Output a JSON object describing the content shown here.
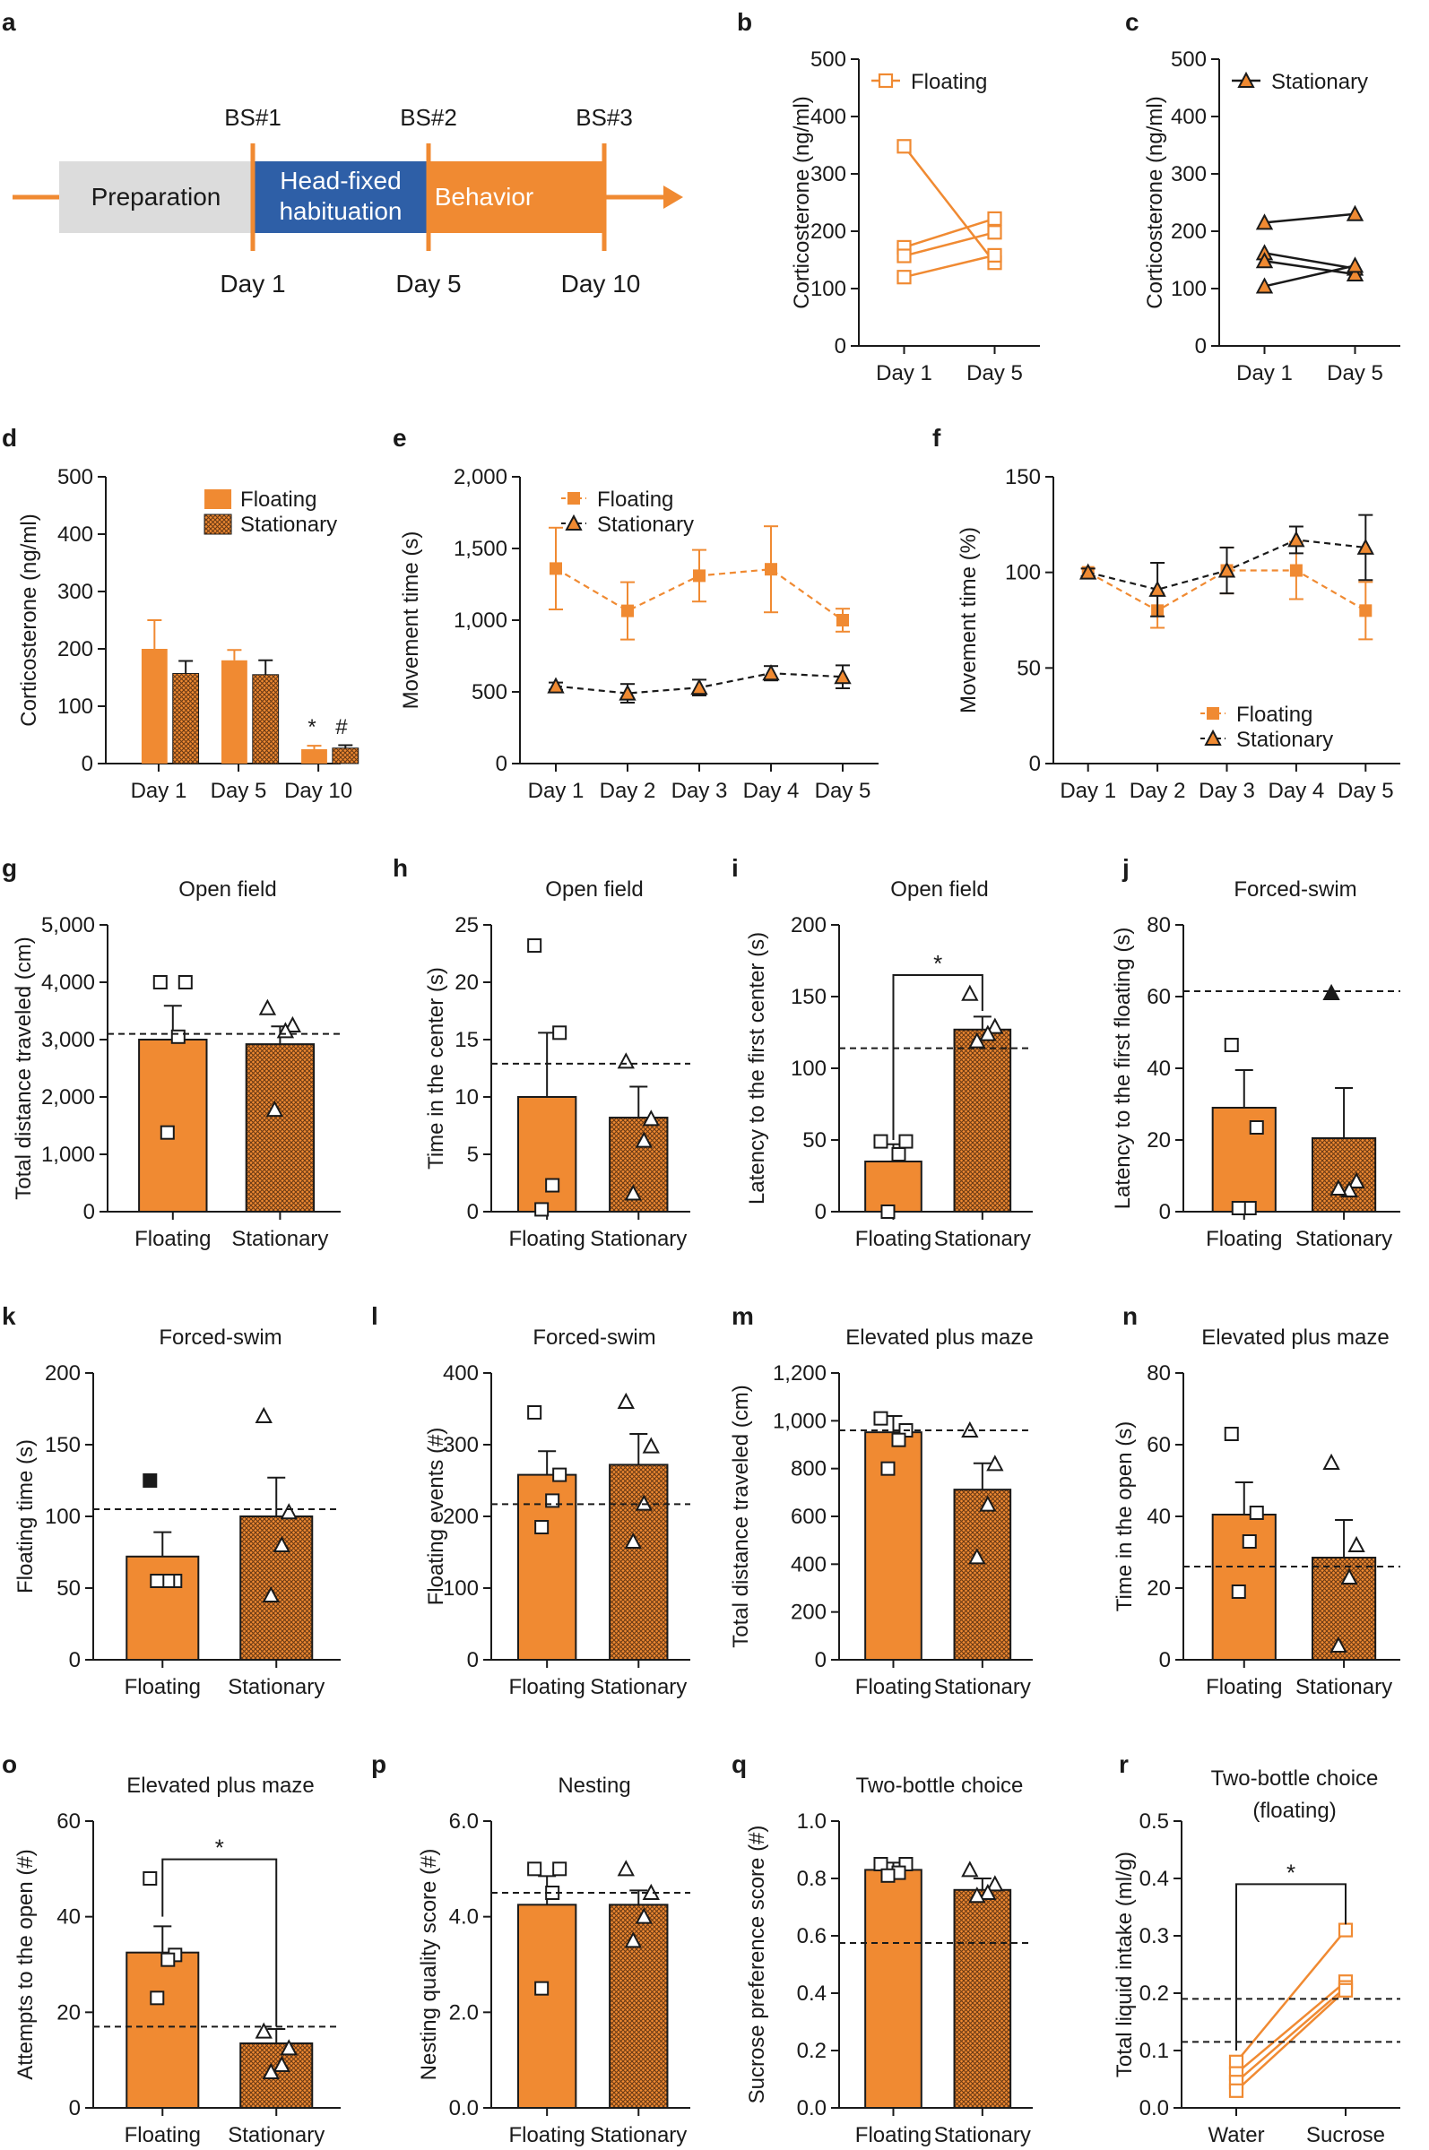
{
  "colors": {
    "orange": "#f08a32",
    "darkOrange": "#d8701f",
    "gray": "#dcdcdc",
    "blue": "#2e5fa7",
    "black": "#1a1a1a",
    "hatch": "#6a3a14"
  },
  "panel_a": {
    "letter": "a",
    "stages": [
      "Preparation",
      "Head-fixed",
      "habituation",
      "Behavior"
    ],
    "bs": [
      "BS#1",
      "BS#2",
      "BS#3"
    ],
    "days": [
      "Day 1",
      "Day 5",
      "Day 10"
    ]
  },
  "chart_data": [
    {
      "id": "b",
      "letter": "b",
      "type": "line",
      "title": "",
      "ylabel": "Corticosterone (ng/ml)",
      "ylim": [
        0,
        500
      ],
      "yticks": [
        0,
        100,
        200,
        300,
        400,
        500
      ],
      "ytick_labels": [
        "0",
        "100",
        "200",
        "300",
        "400",
        "500"
      ],
      "categories": [
        "Day 1",
        "Day 5"
      ],
      "legend": [
        "Floating"
      ],
      "marker": "square-open",
      "series": [
        {
          "name": "Floating",
          "values": [
            348,
            145
          ]
        },
        {
          "name": "Floating",
          "values": [
            172,
            222
          ]
        },
        {
          "name": "Floating",
          "values": [
            157,
            198
          ]
        },
        {
          "name": "Floating",
          "values": [
            120,
            158
          ]
        }
      ]
    },
    {
      "id": "c",
      "letter": "c",
      "type": "line",
      "title": "",
      "ylabel": "Corticosterone (ng/ml)",
      "ylim": [
        0,
        500
      ],
      "yticks": [
        0,
        100,
        200,
        300,
        400,
        500
      ],
      "ytick_labels": [
        "0",
        "100",
        "200",
        "300",
        "400",
        "500"
      ],
      "categories": [
        "Day 1",
        "Day 5"
      ],
      "legend": [
        "Stationary"
      ],
      "marker": "triangle-filled",
      "series": [
        {
          "name": "Stationary",
          "values": [
            215,
            230
          ]
        },
        {
          "name": "Stationary",
          "values": [
            162,
            135
          ]
        },
        {
          "name": "Stationary",
          "values": [
            148,
            125
          ]
        },
        {
          "name": "Stationary",
          "values": [
            104,
            140
          ]
        }
      ]
    },
    {
      "id": "d",
      "letter": "d",
      "type": "bar",
      "title": "",
      "ylabel": "Corticosterone (ng/ml)",
      "ylim": [
        0,
        500
      ],
      "yticks": [
        0,
        100,
        200,
        300,
        400,
        500
      ],
      "ytick_labels": [
        "0",
        "100",
        "200",
        "300",
        "400",
        "500"
      ],
      "categories": [
        "Day 1",
        "Day 5",
        "Day 10"
      ],
      "legend": [
        "Floating",
        "Stationary"
      ],
      "series": [
        {
          "name": "Floating",
          "values": [
            200,
            180,
            25
          ],
          "errors": [
            50,
            18,
            6
          ]
        },
        {
          "name": "Stationary",
          "values": [
            157,
            155,
            27
          ],
          "errors": [
            22,
            25,
            5
          ]
        }
      ],
      "annotations": [
        "*",
        "#"
      ]
    },
    {
      "id": "e",
      "letter": "e",
      "type": "line",
      "title": "",
      "ylabel": "Movement time (s)",
      "ylim": [
        0,
        2000
      ],
      "yticks": [
        0,
        500,
        1000,
        1500,
        2000
      ],
      "ytick_labels": [
        "0",
        "500",
        "1,000",
        "1,500",
        "2,000"
      ],
      "categories": [
        "Day 1",
        "Day 2",
        "Day 3",
        "Day 4",
        "Day 5"
      ],
      "legend": [
        "Floating",
        "Stationary"
      ],
      "series": [
        {
          "name": "Floating",
          "values": [
            1360,
            1065,
            1310,
            1355,
            1000
          ],
          "errors": [
            285,
            200,
            180,
            300,
            80
          ]
        },
        {
          "name": "Stationary",
          "values": [
            540,
            490,
            530,
            630,
            605
          ],
          "errors": [
            25,
            65,
            55,
            50,
            80
          ]
        }
      ]
    },
    {
      "id": "f",
      "letter": "f",
      "type": "line",
      "title": "",
      "ylabel": "Movement time (%)",
      "ylim": [
        0,
        150
      ],
      "yticks": [
        0,
        50,
        100,
        150
      ],
      "ytick_labels": [
        "0",
        "50",
        "100",
        "150"
      ],
      "categories": [
        "Day 1",
        "Day 2",
        "Day 3",
        "Day 4",
        "Day 5"
      ],
      "legend": [
        "Floating",
        "Stationary"
      ],
      "series": [
        {
          "name": "Floating",
          "values": [
            100,
            80,
            101,
            101,
            80
          ],
          "errors": [
            2,
            9,
            12,
            15,
            15
          ]
        },
        {
          "name": "Stationary",
          "values": [
            100,
            91,
            101,
            117,
            113
          ],
          "errors": [
            2,
            14,
            12,
            7,
            17
          ]
        }
      ]
    },
    {
      "id": "g",
      "letter": "g",
      "type": "bar",
      "title": "Open field",
      "ylabel": "Total distance traveled (cm)",
      "ylim": [
        0,
        5000
      ],
      "yticks": [
        0,
        1000,
        2000,
        3000,
        4000,
        5000
      ],
      "ytick_labels": [
        "0",
        "1,000",
        "2,000",
        "3,000",
        "4,000",
        "5,000"
      ],
      "categories": [
        "Floating",
        "Stationary"
      ],
      "values": [
        3000,
        2920
      ],
      "errors": [
        590,
        310
      ],
      "reference": 3100,
      "points": [
        [
          4000,
          4000,
          3050,
          1380
        ],
        [
          3550,
          3250,
          3150,
          1780
        ]
      ],
      "filled_points": []
    },
    {
      "id": "h",
      "letter": "h",
      "type": "bar",
      "title": "Open field",
      "ylabel": "Time in the center (s)",
      "ylim": [
        0,
        25
      ],
      "yticks": [
        0,
        5,
        10,
        15,
        20,
        25
      ],
      "ytick_labels": [
        "0",
        "5",
        "10",
        "15",
        "20",
        "25"
      ],
      "categories": [
        "Floating",
        "Stationary"
      ],
      "values": [
        10,
        8.2
      ],
      "errors": [
        5.6,
        2.7
      ],
      "reference": 12.9,
      "points": [
        [
          23.2,
          15.6,
          2.3,
          0.2
        ],
        [
          13.1,
          8.1,
          6.2,
          1.6
        ]
      ],
      "filled_points": []
    },
    {
      "id": "i",
      "letter": "i",
      "type": "bar",
      "title": "Open field",
      "ylabel": "Latency to the first center (s)",
      "ylim": [
        0,
        200
      ],
      "yticks": [
        0,
        50,
        100,
        150,
        200
      ],
      "ytick_labels": [
        "0",
        "50",
        "100",
        "150",
        "200"
      ],
      "categories": [
        "Floating",
        "Stationary"
      ],
      "values": [
        35,
        127
      ],
      "errors": [
        12,
        9
      ],
      "reference": 114,
      "points": [
        [
          49,
          49,
          40,
          0
        ],
        [
          152,
          129,
          124,
          119
        ]
      ],
      "filled_points": [],
      "significance": "*"
    },
    {
      "id": "j",
      "letter": "j",
      "type": "bar",
      "title": "Forced-swim",
      "ylabel": "Latency to the first floating (s)",
      "ylim": [
        0,
        80
      ],
      "yticks": [
        0,
        20,
        40,
        60,
        80
      ],
      "ytick_labels": [
        "0",
        "20",
        "40",
        "60",
        "80"
      ],
      "categories": [
        "Floating",
        "Stationary"
      ],
      "values": [
        29,
        20.5
      ],
      "errors": [
        10.5,
        14
      ],
      "reference": 61.5,
      "points": [
        [
          46.5,
          23.5,
          1,
          1
        ],
        [
          61,
          8.5,
          6,
          6.5
        ]
      ],
      "filled_points": [
        [],
        [
          0
        ]
      ]
    },
    {
      "id": "k",
      "letter": "k",
      "type": "bar",
      "title": "Forced-swim",
      "ylabel": "Floating time (s)",
      "ylim": [
        0,
        200
      ],
      "yticks": [
        0,
        50,
        100,
        150,
        200
      ],
      "ytick_labels": [
        "0",
        "50",
        "100",
        "150",
        "200"
      ],
      "categories": [
        "Floating",
        "Stationary"
      ],
      "values": [
        72,
        100
      ],
      "errors": [
        17,
        27
      ],
      "reference": 105,
      "points": [
        [
          125,
          55,
          55,
          55
        ],
        [
          170,
          103,
          80,
          45
        ]
      ],
      "filled_points": [
        [
          0
        ],
        []
      ]
    },
    {
      "id": "l",
      "letter": "l",
      "type": "bar",
      "title": "Forced-swim",
      "ylabel": "Floating events (#)",
      "ylim": [
        0,
        400
      ],
      "yticks": [
        0,
        100,
        200,
        300,
        400
      ],
      "ytick_labels": [
        "0",
        "100",
        "200",
        "300",
        "400"
      ],
      "categories": [
        "Floating",
        "Stationary"
      ],
      "values": [
        258,
        272
      ],
      "errors": [
        33,
        43
      ],
      "reference": 217,
      "points": [
        [
          345,
          258,
          222,
          185
        ],
        [
          360,
          298,
          218,
          165
        ]
      ],
      "filled_points": []
    },
    {
      "id": "m",
      "letter": "m",
      "type": "bar",
      "title": "Elevated plus maze",
      "ylabel": "Total distance traveled (cm)",
      "ylim": [
        0,
        1200
      ],
      "yticks": [
        0,
        200,
        400,
        600,
        800,
        1000,
        1200
      ],
      "ytick_labels": [
        "0",
        "200",
        "400",
        "600",
        "800",
        "1,000",
        "1,200"
      ],
      "categories": [
        "Floating",
        "Stationary"
      ],
      "values": [
        952,
        712
      ],
      "errors": [
        68,
        110
      ],
      "reference": 960,
      "points": [
        [
          1010,
          960,
          920,
          800
        ],
        [
          960,
          820,
          650,
          430
        ]
      ],
      "filled_points": []
    },
    {
      "id": "n",
      "letter": "n",
      "type": "bar",
      "title": "Elevated plus maze",
      "ylabel": "Time in the open (s)",
      "ylim": [
        0,
        80
      ],
      "yticks": [
        0,
        20,
        40,
        60,
        80
      ],
      "ytick_labels": [
        "0",
        "20",
        "40",
        "60",
        "80"
      ],
      "categories": [
        "Floating",
        "Stationary"
      ],
      "values": [
        40.5,
        28.5
      ],
      "errors": [
        9,
        10.5
      ],
      "reference": 26,
      "points": [
        [
          63,
          41,
          33,
          19
        ],
        [
          55,
          32,
          23,
          4
        ]
      ],
      "filled_points": []
    },
    {
      "id": "o",
      "letter": "o",
      "type": "bar",
      "title": "Elevated plus maze",
      "ylabel": "Attempts to the open (#)",
      "ylim": [
        0,
        60
      ],
      "yticks": [
        0,
        20,
        40,
        60
      ],
      "ytick_labels": [
        "0",
        "20",
        "40",
        "60"
      ],
      "categories": [
        "Floating",
        "Stationary"
      ],
      "values": [
        32.5,
        13.5
      ],
      "errors": [
        5.5,
        3
      ],
      "reference": 17,
      "points": [
        [
          48,
          32,
          31,
          23
        ],
        [
          16,
          12.5,
          9,
          7.5
        ]
      ],
      "filled_points": [],
      "significance": "*"
    },
    {
      "id": "p",
      "letter": "p",
      "type": "bar",
      "title": "Nesting",
      "ylabel": "Nesting quality score (#)",
      "ylim": [
        0,
        6
      ],
      "yticks": [
        0,
        2,
        4,
        6
      ],
      "ytick_labels": [
        "0.0",
        "2.0",
        "4.0",
        "6.0"
      ],
      "categories": [
        "Floating",
        "Stationary"
      ],
      "values": [
        4.25,
        4.25
      ],
      "errors": [
        0.6,
        0.3
      ],
      "reference": 4.5,
      "points": [
        [
          5,
          5,
          4.5,
          2.5
        ],
        [
          5,
          4.5,
          4,
          3.5
        ]
      ],
      "filled_points": []
    },
    {
      "id": "q",
      "letter": "q",
      "type": "bar",
      "title": "Two-bottle choice",
      "ylabel": "Sucrose preference score (#)",
      "ylim": [
        0,
        1
      ],
      "yticks": [
        0,
        0.2,
        0.4,
        0.6,
        0.8,
        1.0
      ],
      "ytick_labels": [
        "0.0",
        "0.2",
        "0.4",
        "0.6",
        "0.8",
        "1.0"
      ],
      "categories": [
        "Floating",
        "Stationary"
      ],
      "values": [
        0.83,
        0.76
      ],
      "errors": [
        0.025,
        0.04
      ],
      "reference": 0.575,
      "points": [
        [
          0.85,
          0.85,
          0.82,
          0.81
        ],
        [
          0.83,
          0.78,
          0.75,
          0.74
        ]
      ],
      "filled_points": []
    },
    {
      "id": "r",
      "letter": "r",
      "type": "line",
      "title": "Two-bottle choice",
      "title2": "(floating)",
      "ylabel": "Total liquid intake (ml/g)",
      "ylim": [
        0,
        0.5
      ],
      "yticks": [
        0,
        0.1,
        0.2,
        0.3,
        0.4,
        0.5
      ],
      "ytick_labels": [
        "0.0",
        "0.1",
        "0.2",
        "0.3",
        "0.4",
        "0.5"
      ],
      "categories": [
        "Water",
        "Sucrose"
      ],
      "series": [
        {
          "name": "Floating",
          "values": [
            0.08,
            0.31
          ]
        },
        {
          "name": "Floating",
          "values": [
            0.06,
            0.22
          ]
        },
        {
          "name": "Floating",
          "values": [
            0.045,
            0.21
          ]
        },
        {
          "name": "Floating",
          "values": [
            0.03,
            0.205
          ]
        }
      ],
      "references": [
        0.19,
        0.115
      ],
      "significance": "*"
    }
  ]
}
